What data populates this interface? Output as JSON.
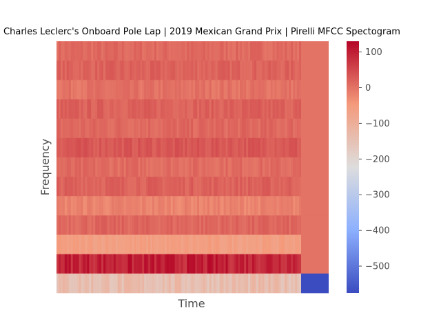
{
  "chart_data": {
    "type": "heatmap",
    "title": "Charles Leclerc's Onboard Pole Lap | 2019 Mexican Grand Prix | Pirelli MFCC Spectogram",
    "xlabel": "Time",
    "ylabel": "Frequency",
    "colormap": "coolwarm",
    "color_range": [
      -575,
      130
    ],
    "colorbar_ticks": [
      100,
      0,
      -100,
      -200,
      -300,
      -400,
      -500
    ],
    "grid": false,
    "rows": [
      {
        "band": 1,
        "level": 10,
        "trailing": 0
      },
      {
        "band": 2,
        "level": 18,
        "trailing": 0
      },
      {
        "band": 3,
        "level": 0,
        "trailing": 0
      },
      {
        "band": 4,
        "level": 20,
        "trailing": 0
      },
      {
        "band": 5,
        "level": 12,
        "trailing": 0
      },
      {
        "band": 6,
        "level": 32,
        "trailing": 0
      },
      {
        "band": 7,
        "level": 8,
        "trailing": 0
      },
      {
        "band": 8,
        "level": 20,
        "trailing": 0
      },
      {
        "band": 9,
        "level": -20,
        "trailing": 0
      },
      {
        "band": 10,
        "level": 14,
        "trailing": 0
      },
      {
        "band": 11,
        "level": -60,
        "trailing": 0
      },
      {
        "band": 12,
        "level": 95,
        "trailing": 0
      },
      {
        "band": 13,
        "level": -140,
        "trailing": -575
      }
    ]
  }
}
